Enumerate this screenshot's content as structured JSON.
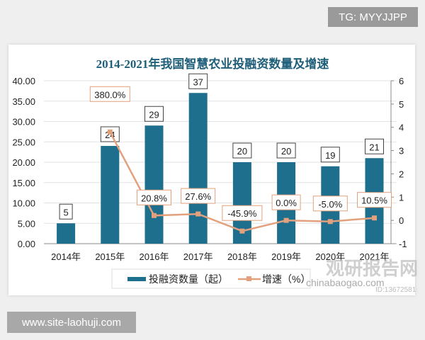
{
  "badges": {
    "tg": "TG: MYYJJPP",
    "site": "www.site-laohuji.com"
  },
  "watermark": {
    "text": "观研报告网",
    "sub": "chinabaogao.com",
    "id": "ID:13672581"
  },
  "chart_data": {
    "type": "bar+line",
    "title": "2014-2021年我国智慧农业投融资数量及增速",
    "categories": [
      "2014年",
      "2015年",
      "2016年",
      "2017年",
      "2018年",
      "2019年",
      "2020年",
      "2021年"
    ],
    "series": [
      {
        "name": "投融资数量（起）",
        "type": "bar",
        "axis": "left",
        "values": [
          5,
          24,
          29,
          37,
          20,
          20,
          19,
          21
        ],
        "labels": [
          "5",
          "24",
          "29",
          "37",
          "20",
          "20",
          "19",
          "21"
        ],
        "color": "#1e6f8e"
      },
      {
        "name": "增速（%）",
        "type": "line",
        "axis": "right",
        "values": [
          null,
          3.8,
          0.208,
          0.276,
          -0.459,
          0,
          -0.05,
          0.105
        ],
        "labels": [
          "",
          "380.0%",
          "20.8%",
          "27.6%",
          "-45.9%",
          "0.0%",
          "-5.0%",
          "10.5%"
        ],
        "color": "#e3a07d"
      }
    ],
    "left_axis": {
      "range": [
        0,
        40
      ],
      "ticks": [
        "0.00",
        "5.00",
        "10.00",
        "15.00",
        "20.00",
        "25.00",
        "30.00",
        "35.00",
        "40.00"
      ]
    },
    "right_axis": {
      "range": [
        -1,
        6
      ],
      "ticks": [
        "-1",
        "0",
        "1",
        "2",
        "3",
        "4",
        "5",
        "6"
      ]
    },
    "grid": true,
    "legend": "bottom"
  }
}
